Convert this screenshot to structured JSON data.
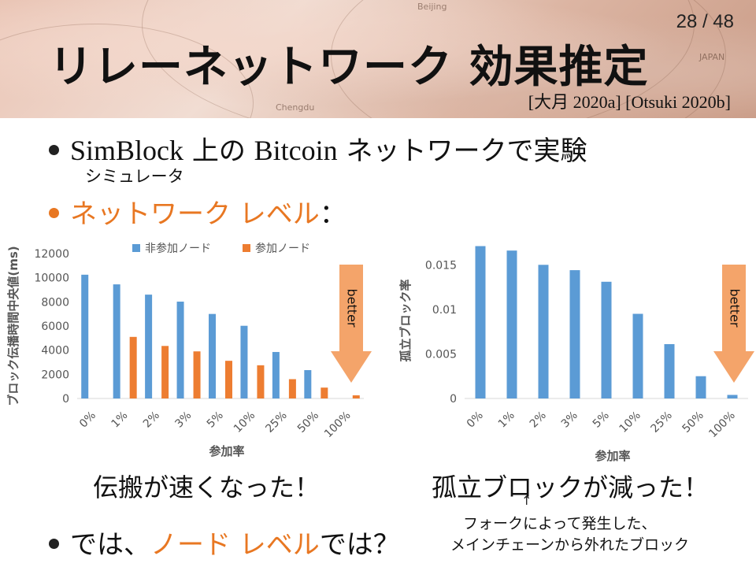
{
  "slide": {
    "page_number": "28 / 48",
    "title": "リレーネットワーク 効果推定",
    "references": "[大月 2020a] [Otsuki 2020b]"
  },
  "background_map_words": [
    "Beijing",
    "JAPAN",
    "Chengdu"
  ],
  "bullets": {
    "b1_prefix": "SimBlock",
    "b1_mid": " 上の ",
    "b1_bitcoin": "Bitcoin",
    "b1_suffix": " ネットワークで実験",
    "b1_ruby": "シミュレータ",
    "b2_text": "ネットワーク レベル",
    "b2_colon": "：",
    "b3_pre": "では、",
    "b3_orange": "ノード レベル",
    "b3_post": "では？"
  },
  "captions": {
    "left": "伝搬が速くなった！",
    "right": "孤立ブロックが減った！",
    "note_line1": "フォークによって発生した、",
    "note_line2": "メインチェーンから外れたブロック",
    "arrow": "↑"
  },
  "colors": {
    "blue": "#5b9bd5",
    "orange": "#ed7d31",
    "better_arrow": "#f4a46a",
    "accent_text": "#e87722"
  },
  "chart_data": [
    {
      "type": "bar",
      "categories": [
        "0%",
        "1%",
        "2%",
        "3%",
        "5%",
        "10%",
        "25%",
        "50%",
        "100%"
      ],
      "series": [
        {
          "name": "非参加ノード",
          "values": [
            10250,
            9450,
            8600,
            8020,
            7000,
            6020,
            3850,
            2350,
            null
          ]
        },
        {
          "name": "参加ノード",
          "values": [
            null,
            5100,
            4350,
            3900,
            3120,
            2750,
            1600,
            900,
            260
          ]
        }
      ],
      "xlabel": "参加率",
      "ylabel": "ブロック伝播時間中央値(ms)",
      "ylim": [
        0,
        12000
      ],
      "yticks": [
        "0",
        "2000",
        "4000",
        "6000",
        "8000",
        "10000",
        "12000"
      ],
      "legend": "top",
      "grid": false,
      "annotation": "better"
    },
    {
      "type": "bar",
      "categories": [
        "0%",
        "1%",
        "2%",
        "3%",
        "5%",
        "10%",
        "25%",
        "50%",
        "100%"
      ],
      "series": [
        {
          "values": [
            0.0171,
            0.0166,
            0.015,
            0.0144,
            0.0131,
            0.0095,
            0.0061,
            0.0025,
            0.0004
          ]
        }
      ],
      "xlabel": "参加率",
      "ylabel": "孤立ブロック率",
      "ylim": [
        0,
        0.0175
      ],
      "yticks": [
        "0",
        "0.005",
        "0.01",
        "0.015"
      ],
      "grid": false,
      "annotation": "better"
    }
  ]
}
